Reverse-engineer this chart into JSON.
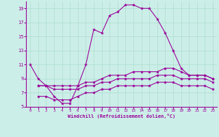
{
  "xlabel": "Windchill (Refroidissement éolien,°C)",
  "bg_color": "#cceee8",
  "line_color": "#990099",
  "grid_color": "#aaddcc",
  "xlim": [
    -0.5,
    23.5
  ],
  "ylim": [
    5,
    20
  ],
  "xticks": [
    0,
    1,
    2,
    3,
    4,
    5,
    6,
    7,
    8,
    9,
    10,
    11,
    12,
    13,
    14,
    15,
    16,
    17,
    18,
    19,
    20,
    21,
    22,
    23
  ],
  "yticks": [
    5,
    7,
    9,
    11,
    13,
    15,
    17,
    19
  ],
  "line1_x": [
    0,
    1,
    2,
    3,
    4,
    5,
    6,
    7,
    8,
    9,
    10,
    11,
    12,
    13,
    14,
    15,
    16,
    17,
    18,
    19,
    20,
    21,
    22,
    23
  ],
  "line1_y": [
    11,
    9,
    8,
    6.5,
    5.5,
    5.5,
    8,
    11,
    16,
    15.5,
    18,
    18.5,
    19.5,
    19.5,
    19,
    19,
    17.5,
    15.5,
    13,
    10.5,
    9.5,
    9.5,
    9.5,
    9
  ],
  "line2_x": [
    1,
    2,
    3,
    4,
    5,
    6,
    7,
    8,
    9,
    10,
    11,
    12,
    13,
    14,
    15,
    16,
    17,
    18,
    19,
    20,
    21,
    22,
    23
  ],
  "line2_y": [
    8,
    8,
    8,
    8,
    8,
    8,
    8.5,
    8.5,
    9,
    9.5,
    9.5,
    9.5,
    10,
    10,
    10,
    10,
    10.5,
    10.5,
    10,
    9.5,
    9.5,
    9.5,
    9
  ],
  "line3_x": [
    1,
    2,
    3,
    4,
    5,
    6,
    7,
    8,
    9,
    10,
    11,
    12,
    13,
    14,
    15,
    16,
    17,
    18,
    19,
    20,
    21,
    22,
    23
  ],
  "line3_y": [
    8,
    8,
    7.5,
    7.5,
    7.5,
    7.5,
    8,
    8,
    8.5,
    8.5,
    9,
    9,
    9,
    9,
    9,
    9.5,
    9.5,
    9.5,
    9,
    9,
    9,
    9,
    8.5
  ],
  "line4_x": [
    1,
    2,
    3,
    4,
    5,
    6,
    7,
    8,
    9,
    10,
    11,
    12,
    13,
    14,
    15,
    16,
    17,
    18,
    19,
    20,
    21,
    22,
    23
  ],
  "line4_y": [
    6.5,
    6.5,
    6,
    6,
    6,
    6.5,
    7,
    7,
    7.5,
    7.5,
    8,
    8,
    8,
    8,
    8,
    8.5,
    8.5,
    8.5,
    8,
    8,
    8,
    8,
    7.5
  ]
}
